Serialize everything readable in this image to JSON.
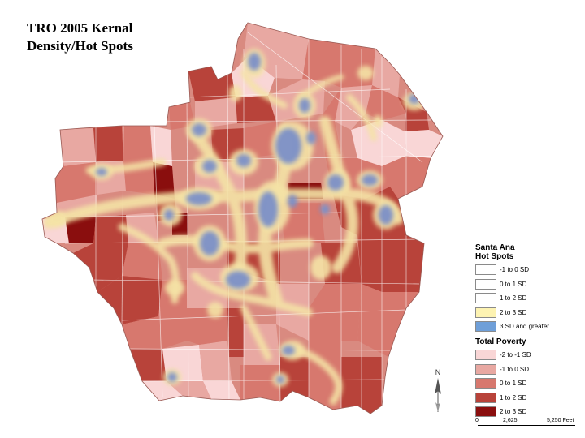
{
  "title_line1": "TRO 2005 Kernal",
  "title_line2": "Density/Hot Spots",
  "legend": {
    "hotspots_title_1": "Santa Ana",
    "hotspots_title_2": "Hot Spots",
    "hotspots": [
      {
        "label": "-1 to 0 SD",
        "color": "#ffffff"
      },
      {
        "label": "0 to 1 SD",
        "color": "#ffffff"
      },
      {
        "label": "1 to 2 SD",
        "color": "#ffffff"
      },
      {
        "label": "2 to 3 SD",
        "color": "#fdf3b2"
      },
      {
        "label": "3 SD and greater",
        "color": "#6f9fd8"
      }
    ],
    "poverty_title": "Total Poverty",
    "poverty": [
      {
        "label": "-2 to -1 SD",
        "color": "#f9d6d6"
      },
      {
        "label": "-1 to 0 SD",
        "color": "#e8a8a2"
      },
      {
        "label": "0 to 1 SD",
        "color": "#d7786e"
      },
      {
        "label": "1 to 2 SD",
        "color": "#b8433a"
      },
      {
        "label": "2 to 3 SD",
        "color": "#8a0e0e"
      }
    ]
  },
  "north_label": "N",
  "scale": {
    "zero": "0",
    "mid": "2,625",
    "end": "5,250 Feet"
  },
  "colors": {
    "hot_blue": "#7c90c8",
    "hot_yellow": "#f4e3a6",
    "map_base": "#d98a80"
  }
}
